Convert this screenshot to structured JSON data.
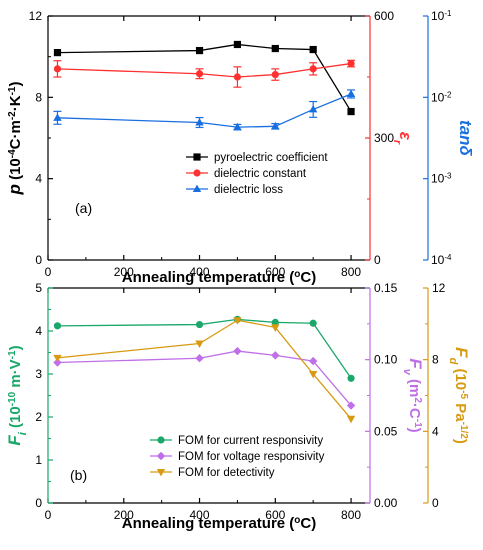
{
  "chart_data": [
    {
      "type": "line",
      "panel_label": "(a)",
      "xlabel_parts": [
        "Annealing temperature (",
        "o",
        "C)"
      ],
      "x_ticks": [
        "0",
        "200",
        "400",
        "600",
        "800"
      ],
      "xlim": [
        0,
        850
      ],
      "axes": [
        {
          "id": "y1",
          "side": "left",
          "color": "#000000",
          "scale": "linear",
          "lim": [
            0,
            12
          ],
          "ticks": [
            "0",
            "4",
            "8",
            "12"
          ],
          "label_parts": [
            "p",
            " (10",
            "-4",
            "C·m",
            "-2",
            "·K",
            "-1",
            ")"
          ]
        },
        {
          "id": "y2",
          "side": "right",
          "color": "#ff3030",
          "scale": "linear",
          "lim": [
            0,
            600
          ],
          "ticks": [
            "0",
            "300",
            "600"
          ],
          "label_parts": [
            "ε",
            "r"
          ]
        },
        {
          "id": "y3",
          "side": "right-outer",
          "color": "#1a6fe0",
          "scale": "log",
          "lim": [
            0.0001,
            0.1
          ],
          "ticks": [
            "10",
            "10",
            "10",
            "10"
          ],
          "tick_exps": [
            "-4",
            "-3",
            "-2",
            "-1"
          ],
          "label_parts": [
            "tanδ"
          ]
        }
      ],
      "series": [
        {
          "name": "pyroelectric coefficient",
          "axis": "y1",
          "color": "#000000",
          "marker": "square",
          "x": [
            25,
            400,
            500,
            600,
            700,
            800
          ],
          "y": [
            10.2,
            10.3,
            10.6,
            10.4,
            10.35,
            7.3
          ],
          "err": [
            0,
            0,
            0,
            0,
            0,
            0
          ]
        },
        {
          "name": "dielectric constant",
          "axis": "y2",
          "color": "#ff3030",
          "marker": "circle",
          "x": [
            25,
            400,
            500,
            600,
            700,
            800
          ],
          "y": [
            470,
            458,
            450,
            456,
            470,
            483
          ],
          "err": [
            20,
            12,
            25,
            14,
            15,
            8
          ]
        },
        {
          "name": "dielectric loss",
          "axis": "y3",
          "color": "#1a6fe0",
          "marker": "triangle",
          "x": [
            25,
            400,
            500,
            600,
            700,
            800
          ],
          "y": [
            0.0056,
            0.0049,
            0.0043,
            0.0044,
            0.0071,
            0.011
          ],
          "err_factor": [
            1.2,
            1.15,
            1.08,
            1.08,
            1.25,
            1.12
          ]
        }
      ],
      "legend_position": "lower-right"
    },
    {
      "type": "line",
      "panel_label": "(b)",
      "xlabel_parts": [
        "Annealing temperature (",
        "o",
        "C)"
      ],
      "x_ticks": [
        "0",
        "200",
        "400",
        "600",
        "800"
      ],
      "xlim": [
        0,
        850
      ],
      "axes": [
        {
          "id": "y1",
          "side": "left",
          "color": "#1aa86a",
          "scale": "linear",
          "lim": [
            0,
            5
          ],
          "ticks": [
            "0",
            "1",
            "2",
            "3",
            "4",
            "5"
          ],
          "label_parts": [
            "F",
            "i",
            " (10",
            "-10",
            " m·V",
            "-1",
            ")"
          ]
        },
        {
          "id": "y2",
          "side": "right",
          "color": "#bf6fe8",
          "scale": "linear",
          "lim": [
            0,
            0.15
          ],
          "ticks": [
            "0.00",
            "0.05",
            "0.10",
            "0.15"
          ],
          "label_parts": [
            "F",
            "v",
            " (m",
            "2",
            "·C",
            "-1",
            ")"
          ]
        },
        {
          "id": "y3",
          "side": "right-outer",
          "color": "#d79a10",
          "scale": "linear",
          "lim": [
            0,
            12
          ],
          "ticks": [
            "0",
            "4",
            "8",
            "12"
          ],
          "label_parts": [
            "F",
            "d",
            " (10",
            "-5",
            " Pa",
            "-1/2",
            ")"
          ]
        }
      ],
      "series": [
        {
          "name": "FOM for current responsivity",
          "axis": "y1",
          "color": "#1aa86a",
          "marker": "circle",
          "x": [
            25,
            400,
            500,
            600,
            700,
            800
          ],
          "y": [
            4.12,
            4.15,
            4.27,
            4.2,
            4.18,
            2.9
          ]
        },
        {
          "name": "FOM for voltage responsivity",
          "axis": "y2",
          "color": "#bf6fe8",
          "marker": "diamond",
          "x": [
            25,
            400,
            500,
            600,
            700,
            800
          ],
          "y": [
            0.098,
            0.101,
            0.106,
            0.103,
            0.099,
            0.068
          ]
        },
        {
          "name": "FOM for detectivity",
          "axis": "y3",
          "color": "#d79a10",
          "marker": "triangle-down",
          "x": [
            25,
            400,
            500,
            600,
            700,
            800
          ],
          "y": [
            8.1,
            8.9,
            10.2,
            9.8,
            7.2,
            4.7
          ]
        }
      ],
      "legend_position": "lower-center"
    }
  ]
}
